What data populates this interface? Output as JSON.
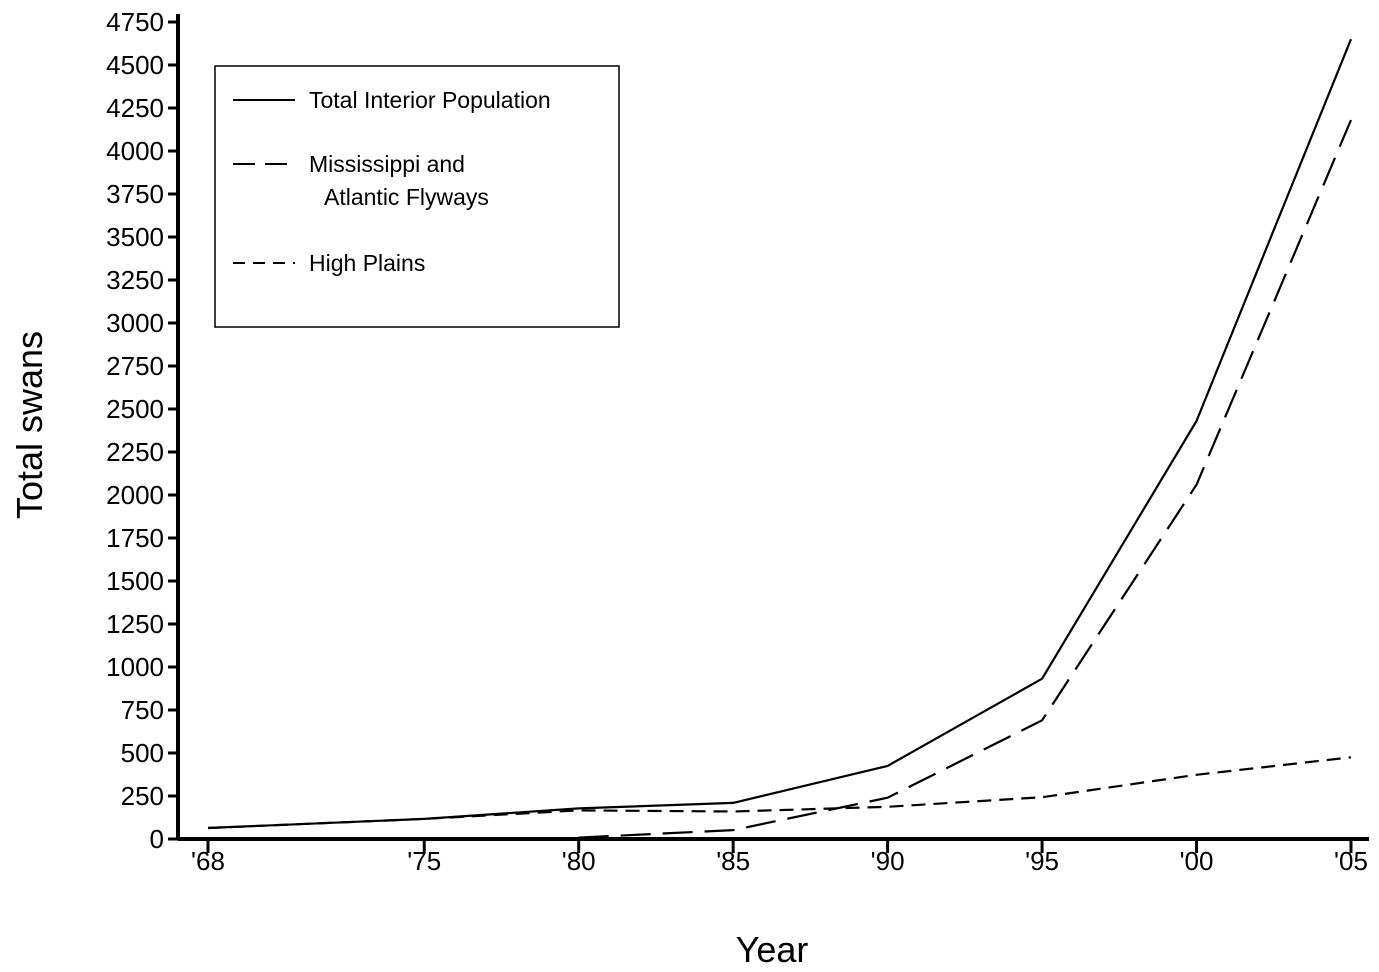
{
  "chart_data": {
    "type": "line",
    "title": "",
    "xlabel": "Year",
    "ylabel": "Total swans",
    "x_ticks": [
      "'68",
      "'75",
      "'80",
      "'85",
      "'90",
      "'95",
      "'00",
      "'05"
    ],
    "xlim": [
      1968,
      2005
    ],
    "ylim": [
      0,
      4750
    ],
    "y_ticks": [
      0,
      250,
      500,
      750,
      1000,
      1250,
      1500,
      1750,
      2000,
      2250,
      2500,
      2750,
      3000,
      3250,
      3500,
      3750,
      4000,
      4250,
      4500,
      4750
    ],
    "grid": false,
    "legend_position": "top-left",
    "series": [
      {
        "name": "Total Interior Population",
        "style": "solid",
        "x": [
          1968,
          1975,
          1980,
          1985,
          1990,
          1995,
          2000,
          2005
        ],
        "y": [
          64,
          117,
          178,
          210,
          425,
          932,
          2430,
          4650
        ]
      },
      {
        "name": "Mississippi and Atlantic Flyways",
        "name_lines": [
          "Mississippi and",
          "Atlantic Flyways"
        ],
        "style": "long-dash",
        "x": [
          1980,
          1985,
          1990,
          1995,
          2000,
          2005
        ],
        "y": [
          8,
          52,
          240,
          690,
          2060,
          4180
        ]
      },
      {
        "name": "High Plains",
        "style": "short-dash",
        "x": [
          1968,
          1975,
          1980,
          1985,
          1990,
          1995,
          2000,
          2005
        ],
        "y": [
          64,
          117,
          166,
          160,
          187,
          243,
          373,
          475
        ]
      }
    ]
  }
}
